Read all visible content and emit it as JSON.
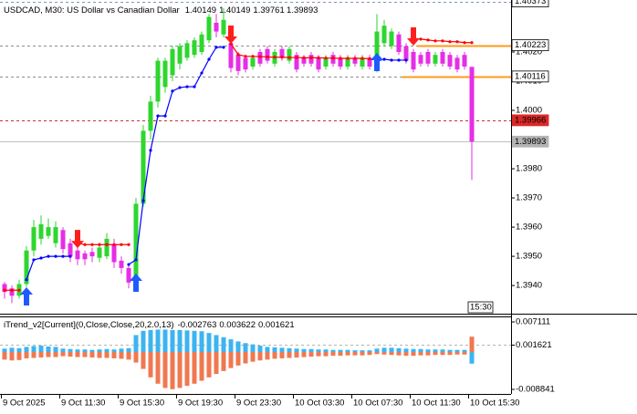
{
  "chart_data": [
    {
      "type": "candlestick",
      "title": "USDCAD, M30:  US Dollar vs Canadian Dollar",
      "categories": [
        "9 Oct 2025",
        null,
        null,
        null,
        null,
        null,
        null,
        null,
        "9 Oct 11:30",
        null,
        null,
        null,
        null,
        null,
        null,
        null,
        "9 Oct 15:30",
        null,
        null,
        null,
        null,
        null,
        null,
        null,
        "9 Oct 19:30",
        null,
        null,
        null,
        null,
        null,
        null,
        null,
        "9 Oct 23:30",
        null,
        null,
        null,
        null,
        null,
        null,
        null,
        "10 Oct 03:30",
        null,
        null,
        null,
        null,
        null,
        null,
        null,
        "10 Oct 07:30",
        null,
        null,
        null,
        null,
        null,
        null,
        null,
        "10 Oct 11:30",
        null,
        null,
        null,
        null,
        null,
        null,
        null,
        "10 Oct 15:30"
      ],
      "open": [
        1.39405,
        1.3939,
        1.39365,
        1.39405,
        1.3952,
        1.3956,
        1.3957,
        1.39545,
        1.3959,
        1.39545,
        1.3952,
        1.3951,
        1.39515,
        1.39495,
        1.395,
        1.3954,
        1.39485,
        1.3946,
        1.3943,
        1.3968,
        1.3993,
        1.4003,
        1.4008,
        1.4012,
        1.4016,
        1.4018,
        1.4019,
        1.402,
        1.4024,
        1.403,
        1.4026,
        1.4023,
        1.4019,
        1.4018,
        1.4015,
        1.402,
        1.4021,
        1.4016,
        1.4021,
        1.4017,
        1.4019,
        1.4018,
        1.4019,
        1.4018,
        1.4015,
        1.4019,
        1.4018,
        1.4015,
        1.4018,
        1.4015,
        1.4018,
        1.4015,
        1.4023,
        1.4022,
        1.4026,
        1.4022,
        1.402,
        1.4019,
        1.402,
        1.4016,
        1.402,
        1.4019,
        1.4018,
        1.4019,
        1.40149
      ],
      "high": [
        1.39412,
        1.394,
        1.3942,
        1.39535,
        1.39625,
        1.3964,
        1.3963,
        1.3962,
        1.396,
        1.3956,
        1.3953,
        1.3952,
        1.3953,
        1.39545,
        1.3958,
        1.3956,
        1.395,
        1.39475,
        1.397,
        1.3995,
        1.4005,
        1.4018,
        1.4018,
        1.4022,
        1.4023,
        1.4024,
        1.4025,
        1.4027,
        1.4033,
        1.4033,
        1.4035,
        1.4025,
        1.402,
        1.4019,
        1.4019,
        1.4021,
        1.4022,
        1.4021,
        1.4022,
        1.4022,
        1.402,
        1.4019,
        1.402,
        1.4019,
        1.4019,
        1.402,
        1.4019,
        1.4019,
        1.4019,
        1.4019,
        1.4019,
        1.4033,
        1.4031,
        1.4028,
        1.4027,
        1.4023,
        1.4021,
        1.402,
        1.4021,
        1.402,
        1.4021,
        1.402,
        1.4019,
        1.402,
        1.40149
      ],
      "low": [
        1.39355,
        1.3934,
        1.39355,
        1.39395,
        1.395,
        1.3954,
        1.3956,
        1.3953,
        1.3951,
        1.3948,
        1.3947,
        1.3947,
        1.3948,
        1.3948,
        1.3949,
        1.3946,
        1.3944,
        1.3939,
        1.3942,
        1.3967,
        1.399,
        1.4001,
        1.4006,
        1.401,
        1.4014,
        1.4017,
        1.4018,
        1.4019,
        1.4023,
        1.4025,
        1.4025,
        1.4013,
        1.4012,
        1.4013,
        1.4014,
        1.4015,
        1.4016,
        1.4015,
        1.4017,
        1.4016,
        1.4013,
        1.4015,
        1.4015,
        1.4013,
        1.4014,
        1.4015,
        1.4014,
        1.4014,
        1.4015,
        1.4014,
        1.4014,
        1.4013,
        1.4022,
        1.4021,
        1.4019,
        1.4016,
        1.4013,
        1.4015,
        1.4015,
        1.4015,
        1.4015,
        1.4014,
        1.4013,
        1.4014,
        1.39761
      ],
      "close": [
        1.39378,
        1.39365,
        1.39405,
        1.3952,
        1.396,
        1.3961,
        1.396,
        1.396,
        1.39525,
        1.395,
        1.3949,
        1.3949,
        1.395,
        1.3953,
        1.3956,
        1.3948,
        1.3946,
        1.3941,
        1.3968,
        1.3993,
        1.4003,
        1.4017,
        1.4017,
        1.4021,
        1.4022,
        1.4023,
        1.4024,
        1.4026,
        1.4032,
        1.4027,
        1.4031,
        1.40145,
        1.40135,
        1.4014,
        1.4018,
        1.4016,
        1.4017,
        1.402,
        1.4018,
        1.4021,
        1.4014,
        1.4016,
        1.4016,
        1.4014,
        1.4018,
        1.4016,
        1.4015,
        1.4018,
        1.4016,
        1.4018,
        1.4015,
        1.4027,
        1.4029,
        1.4027,
        1.402,
        1.4017,
        1.4014,
        1.4016,
        1.4016,
        1.4019,
        1.4016,
        1.4015,
        1.4014,
        1.4015,
        1.39893
      ],
      "up_color": "#2ed62e",
      "down_color": "#e62ee6",
      "ylim": [
        1.39316,
        1.40378
      ],
      "yticks": [
        {
          "value": 1.394,
          "label": "1.3940"
        },
        {
          "value": 1.395,
          "label": "1.3950"
        },
        {
          "value": 1.396,
          "label": "1.3960"
        },
        {
          "value": 1.397,
          "label": "1.3970"
        },
        {
          "value": 1.398,
          "label": "1.3980"
        },
        {
          "value": 1.399,
          "label": "1.3990"
        },
        {
          "value": 1.4,
          "label": "1.4000"
        },
        {
          "value": 1.401,
          "label": "1.4010"
        },
        {
          "value": 1.402,
          "label": "1.4020"
        }
      ],
      "trail": [
        {
          "color": "#0000ff",
          "values": [
            null,
            null,
            null,
            1.3942,
            1.39488,
            1.39494,
            1.395,
            1.395,
            1.395,
            1.395,
            null,
            null,
            null,
            null,
            null,
            null,
            null,
            1.39472,
            1.39488,
            1.39691,
            1.39863,
            1.39981,
            1.39981,
            1.40066,
            1.40078,
            1.40081,
            1.40081,
            1.40128,
            1.40175,
            1.40216,
            1.40216,
            null,
            null,
            null,
            null,
            null,
            null,
            null,
            null,
            null,
            null,
            null,
            null,
            null,
            null,
            null,
            null,
            null,
            null,
            null,
            null,
            1.40169,
            1.40175,
            1.40172,
            1.40172,
            1.40172,
            null,
            null,
            null,
            null,
            null,
            null,
            null,
            null,
            null
          ]
        },
        {
          "color": "#ff0000",
          "values": [
            1.39384,
            1.39384,
            1.39384,
            null,
            null,
            null,
            null,
            null,
            null,
            null,
            1.39545,
            1.3954,
            1.3954,
            1.3954,
            1.3954,
            1.3954,
            1.3954,
            1.3954,
            null,
            null,
            null,
            null,
            null,
            null,
            null,
            null,
            null,
            null,
            null,
            null,
            null,
            1.40228,
            1.40191,
            1.40185,
            1.40185,
            1.40184,
            1.40183,
            1.40182,
            1.40182,
            1.40181,
            1.40181,
            1.4018,
            1.4018,
            1.4018,
            1.40179,
            1.40179,
            1.40178,
            1.40178,
            1.40178,
            1.40178,
            1.40177,
            null,
            null,
            null,
            null,
            null,
            1.40247,
            1.40244,
            1.40241,
            1.40238,
            1.40238,
            1.40235,
            1.40235,
            1.40232,
            1.40232
          ]
        }
      ],
      "up_arrows": {
        "color": "#1e5aff",
        "points": [
          {
            "index": 3,
            "price": 1.39394
          },
          {
            "index": 18,
            "price": 1.39441
          },
          {
            "index": 51,
            "price": 1.40197
          }
        ]
      },
      "down_arrows": {
        "color": "#ff1e1e",
        "points": [
          {
            "index": 10,
            "price": 1.39528
          },
          {
            "index": 31,
            "price": 1.40228
          },
          {
            "index": 56,
            "price": 1.40222
          }
        ]
      },
      "levels": [
        {
          "value": 1.40373,
          "color": "#7f95b5",
          "dashed": true,
          "box": "#ffffff",
          "text_color": "#000000"
        },
        {
          "value": 1.40223,
          "color": "#8c8c8c",
          "dashed": true,
          "box": "#ffffff",
          "text_color": "#000000",
          "highlight_from": 57,
          "highlight_color": "#ff9a1e"
        },
        {
          "value": 1.40116,
          "color": "#8c8c8c",
          "dashed": true,
          "box": "#ffffff",
          "text_color": "#000000",
          "highlight_from": 55,
          "highlight_color": "#ff9a1e"
        },
        {
          "value": 1.39966,
          "color": "#c83232",
          "dashed": true,
          "box": "#dc2828",
          "text_color": "#ffffff"
        },
        {
          "value": 1.39893,
          "color": "#c0c0c0",
          "dashed": false,
          "box": "#b4b4b4",
          "text_color": "#ffffff"
        }
      ],
      "time_marker": "15:30"
    },
    {
      "type": "bar",
      "title": "iTrend_v2[Current](0,Close,Close,20,2.0,13)",
      "series": [
        {
          "color": "#3cb4f0",
          "values": [
            0.0008,
            0.001,
            0.0009,
            0.0012,
            0.0014,
            0.0015,
            0.0013,
            0.0012,
            0.0008,
            0.0007,
            0.0006,
            0.0006,
            0.0005,
            0.0006,
            0.0007,
            0.0006,
            0.0008,
            0.0009,
            0.004,
            0.005,
            0.0052,
            0.0053,
            0.0053,
            0.0052,
            0.0052,
            0.0051,
            0.005,
            0.0049,
            0.0045,
            0.004,
            0.0035,
            0.003,
            0.0025,
            0.0021,
            0.0018,
            0.0015,
            0.0012,
            0.0011,
            0.001,
            0.0009,
            0.0008,
            0.0007,
            0.0007,
            0.0006,
            0.0006,
            0.0005,
            0.0005,
            0.0005,
            0.0004,
            0.0004,
            0.0004,
            0.0008,
            0.001,
            0.001,
            0.0009,
            0.0008,
            0.0007,
            0.0007,
            0.0006,
            0.0006,
            0.0006,
            0.0005,
            0.0005,
            0.0005,
            -0.002763
          ]
        },
        {
          "color": "#f07850",
          "values": [
            -0.0018,
            -0.002,
            -0.0019,
            -0.0015,
            -0.0014,
            -0.0013,
            -0.0012,
            -0.0012,
            -0.001,
            -0.0011,
            -0.0012,
            -0.0012,
            -0.0013,
            -0.0014,
            -0.0014,
            -0.0015,
            -0.0016,
            -0.0018,
            -0.0025,
            -0.004,
            -0.006,
            -0.0075,
            -0.0085,
            -0.0088,
            -0.0085,
            -0.008,
            -0.0075,
            -0.0068,
            -0.006,
            -0.0052,
            -0.0045,
            -0.0038,
            -0.0032,
            -0.0027,
            -0.0023,
            -0.002,
            -0.0018,
            -0.0016,
            -0.0015,
            -0.0014,
            -0.0013,
            -0.0012,
            -0.0011,
            -0.001,
            -0.001,
            -0.0009,
            -0.0009,
            -0.0008,
            -0.0008,
            -0.0008,
            -0.0007,
            -0.0005,
            -0.0006,
            -0.0007,
            -0.0008,
            -0.0009,
            -0.0009,
            -0.0008,
            -0.0008,
            -0.0007,
            -0.0007,
            -0.0007,
            -0.0006,
            -0.0006,
            0.003622
          ]
        }
      ],
      "ylim": [
        -0.00992,
        0.00841
      ],
      "yticks": [
        0.007111,
        0.001621,
        -0.008841
      ],
      "level_color": "#b4b4b4"
    }
  ]
}
